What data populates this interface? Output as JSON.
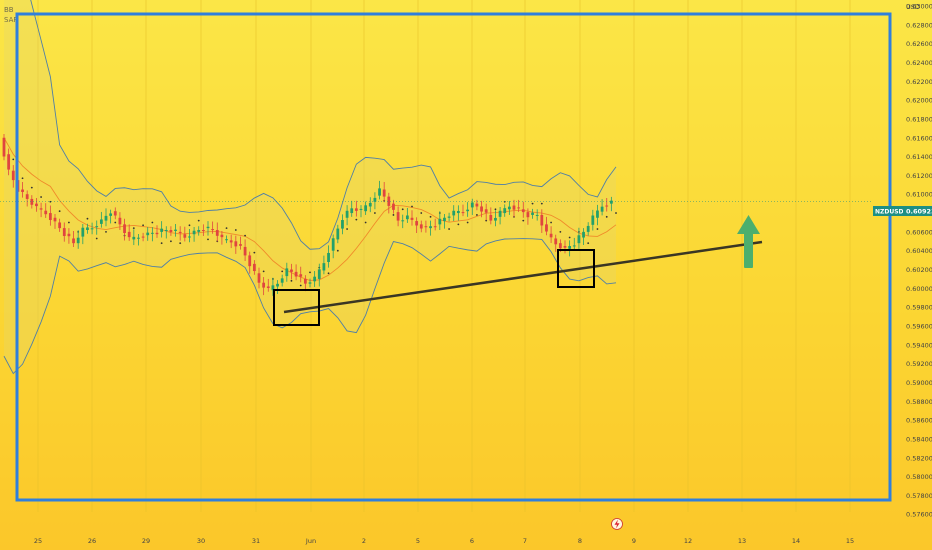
{
  "indicators": [
    "BB",
    "SAR"
  ],
  "currency": "USD",
  "symbol": "NZDUSD",
  "last_price": "0.60923",
  "chart_data": {
    "type": "candlestick",
    "ylim": [
      0.5756,
      0.63
    ],
    "y_ticks": [
      "0.63000",
      "0.62800",
      "0.62600",
      "0.62400",
      "0.62200",
      "0.62000",
      "0.61800",
      "0.61600",
      "0.61400",
      "0.61200",
      "0.61000",
      "0.60800",
      "0.60600",
      "0.60400",
      "0.60200",
      "0.60000",
      "0.59800",
      "0.59600",
      "0.59400",
      "0.59200",
      "0.59000",
      "0.58800",
      "0.58600",
      "0.58400",
      "0.58200",
      "0.58000",
      "0.57800",
      "0.57600"
    ],
    "x_labels": [
      "25",
      "26",
      "29",
      "30",
      "31",
      "Jun",
      "2",
      "5",
      "6",
      "7",
      "8",
      "9",
      "12",
      "13",
      "14",
      "15"
    ],
    "close_path": [
      0.616,
      0.6125,
      0.6105,
      0.6095,
      0.6085,
      0.608,
      0.607,
      0.6058,
      0.6048,
      0.6062,
      0.6065,
      0.6072,
      0.6082,
      0.6068,
      0.6052,
      0.6055,
      0.6058,
      0.606,
      0.6062,
      0.606,
      0.6055,
      0.606,
      0.6064,
      0.6062,
      0.6052,
      0.605,
      0.6044,
      0.6026,
      0.6006,
      0.5998,
      0.6006,
      0.602,
      0.6015,
      0.6005,
      0.601,
      0.6028,
      0.6052,
      0.6075,
      0.6085,
      0.6082,
      0.6092,
      0.6105,
      0.609,
      0.6072,
      0.6075,
      0.6068,
      0.6064,
      0.6068,
      0.6075,
      0.608,
      0.6082,
      0.609,
      0.6084,
      0.6072,
      0.608,
      0.6088,
      0.6084,
      0.6078,
      0.6078,
      0.6058,
      0.6048,
      0.6042,
      0.6048,
      0.606,
      0.6075,
      0.6088,
      0.6092
    ]
  }
}
